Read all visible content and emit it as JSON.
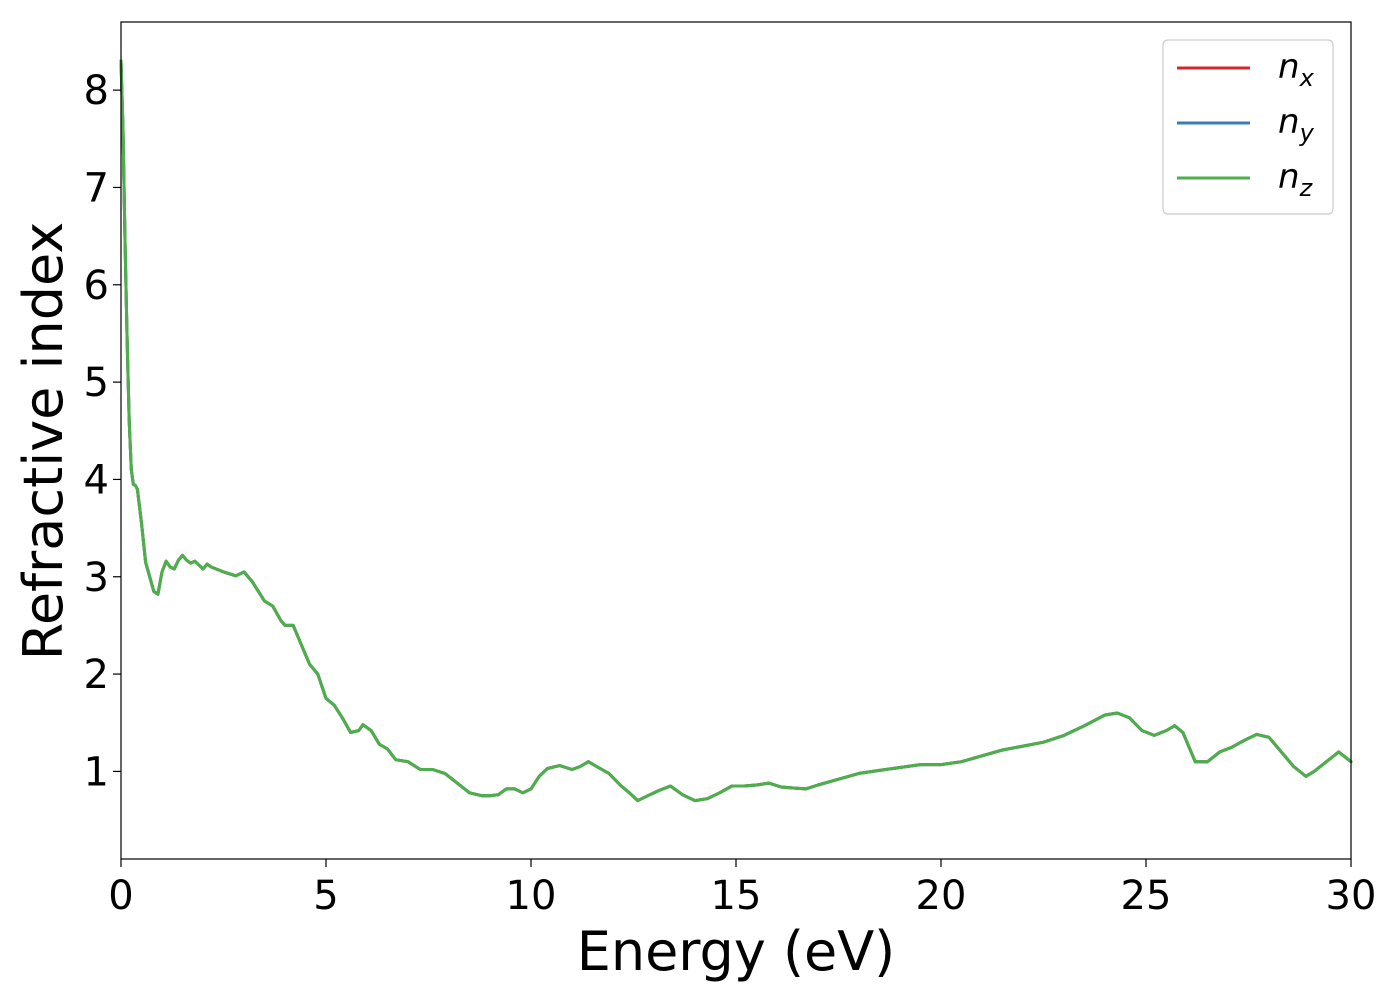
{
  "chart_data": {
    "type": "line",
    "title": "",
    "xlabel": "Energy (eV)",
    "ylabel": "Refractive index",
    "xlim": [
      0,
      30
    ],
    "ylim": [
      0.1,
      8.7
    ],
    "xticks": [
      0,
      5,
      10,
      15,
      20,
      25,
      30
    ],
    "xtick_labels": [
      "0",
      "5",
      "10",
      "15",
      "20",
      "25",
      "30"
    ],
    "yticks": [
      1,
      2,
      3,
      4,
      5,
      6,
      7,
      8
    ],
    "ytick_labels": [
      "1",
      "2",
      "3",
      "4",
      "5",
      "6",
      "7",
      "8"
    ],
    "grid": false,
    "legend_position": "top-right",
    "x": [
      0,
      0.05,
      0.1,
      0.15,
      0.2,
      0.25,
      0.3,
      0.35,
      0.4,
      0.5,
      0.6,
      0.7,
      0.8,
      0.9,
      1.0,
      1.1,
      1.2,
      1.3,
      1.4,
      1.5,
      1.6,
      1.7,
      1.8,
      1.9,
      2.0,
      2.1,
      2.2,
      2.5,
      2.8,
      3.0,
      3.2,
      3.5,
      3.7,
      3.9,
      4.0,
      4.2,
      4.4,
      4.6,
      4.8,
      5.0,
      5.2,
      5.4,
      5.6,
      5.8,
      5.9,
      6.1,
      6.3,
      6.5,
      6.7,
      7.0,
      7.3,
      7.6,
      7.9,
      8.2,
      8.5,
      8.8,
      9.0,
      9.2,
      9.4,
      9.6,
      9.8,
      10.0,
      10.2,
      10.4,
      10.7,
      11.0,
      11.2,
      11.4,
      11.6,
      11.9,
      12.2,
      12.4,
      12.6,
      12.8,
      13.1,
      13.4,
      13.7,
      14.0,
      14.3,
      14.6,
      14.9,
      15.2,
      15.5,
      15.8,
      16.1,
      16.4,
      16.7,
      17.0,
      17.5,
      18.0,
      18.5,
      19.0,
      19.5,
      20.0,
      20.5,
      21.0,
      21.5,
      22.0,
      22.5,
      23.0,
      23.5,
      24.0,
      24.3,
      24.6,
      24.9,
      25.2,
      25.5,
      25.7,
      25.9,
      26.2,
      26.5,
      26.8,
      27.1,
      27.4,
      27.7,
      28.0,
      28.3,
      28.6,
      28.9,
      29.1,
      29.4,
      29.7,
      30.0
    ],
    "series": [
      {
        "name": "n_x",
        "color": "#d62728",
        "y": [
          8.3,
          7.6,
          6.4,
          5.4,
          4.6,
          4.1,
          3.95,
          3.94,
          3.9,
          3.55,
          3.15,
          3.0,
          2.85,
          2.82,
          3.05,
          3.16,
          3.1,
          3.08,
          3.17,
          3.22,
          3.17,
          3.14,
          3.16,
          3.12,
          3.08,
          3.13,
          3.1,
          3.05,
          3.01,
          3.05,
          2.95,
          2.75,
          2.7,
          2.55,
          2.5,
          2.5,
          2.3,
          2.1,
          2.0,
          1.75,
          1.68,
          1.55,
          1.4,
          1.42,
          1.48,
          1.42,
          1.28,
          1.23,
          1.12,
          1.1,
          1.02,
          1.02,
          0.98,
          0.88,
          0.78,
          0.75,
          0.75,
          0.76,
          0.82,
          0.82,
          0.78,
          0.82,
          0.95,
          1.03,
          1.06,
          1.02,
          1.05,
          1.1,
          1.05,
          0.98,
          0.85,
          0.78,
          0.7,
          0.74,
          0.8,
          0.85,
          0.76,
          0.7,
          0.72,
          0.78,
          0.85,
          0.85,
          0.86,
          0.88,
          0.84,
          0.83,
          0.82,
          0.86,
          0.92,
          0.98,
          1.01,
          1.04,
          1.07,
          1.07,
          1.1,
          1.16,
          1.22,
          1.26,
          1.3,
          1.37,
          1.47,
          1.58,
          1.6,
          1.55,
          1.42,
          1.37,
          1.42,
          1.47,
          1.4,
          1.1,
          1.1,
          1.2,
          1.25,
          1.32,
          1.38,
          1.35,
          1.2,
          1.05,
          0.95,
          1.0,
          1.1,
          1.2,
          1.1
        ]
      },
      {
        "name": "n_y",
        "color": "#3a7cb3",
        "y": [
          8.3,
          7.6,
          6.4,
          5.4,
          4.6,
          4.1,
          3.95,
          3.94,
          3.9,
          3.55,
          3.15,
          3.0,
          2.85,
          2.82,
          3.05,
          3.16,
          3.1,
          3.08,
          3.17,
          3.22,
          3.17,
          3.14,
          3.16,
          3.12,
          3.08,
          3.13,
          3.1,
          3.05,
          3.01,
          3.05,
          2.95,
          2.75,
          2.7,
          2.55,
          2.5,
          2.5,
          2.3,
          2.1,
          2.0,
          1.75,
          1.68,
          1.55,
          1.4,
          1.42,
          1.48,
          1.42,
          1.28,
          1.23,
          1.12,
          1.1,
          1.02,
          1.02,
          0.98,
          0.88,
          0.78,
          0.75,
          0.75,
          0.76,
          0.82,
          0.82,
          0.78,
          0.82,
          0.95,
          1.03,
          1.06,
          1.02,
          1.05,
          1.1,
          1.05,
          0.98,
          0.85,
          0.78,
          0.7,
          0.74,
          0.8,
          0.85,
          0.76,
          0.7,
          0.72,
          0.78,
          0.85,
          0.85,
          0.86,
          0.88,
          0.84,
          0.83,
          0.82,
          0.86,
          0.92,
          0.98,
          1.01,
          1.04,
          1.07,
          1.07,
          1.1,
          1.16,
          1.22,
          1.26,
          1.3,
          1.37,
          1.47,
          1.58,
          1.6,
          1.55,
          1.42,
          1.37,
          1.42,
          1.47,
          1.4,
          1.1,
          1.1,
          1.2,
          1.25,
          1.32,
          1.38,
          1.35,
          1.2,
          1.05,
          0.95,
          1.0,
          1.1,
          1.2,
          1.1
        ]
      },
      {
        "name": "n_z",
        "color": "#4daf4a",
        "y": [
          8.3,
          7.6,
          6.4,
          5.4,
          4.6,
          4.1,
          3.95,
          3.94,
          3.9,
          3.55,
          3.15,
          3.0,
          2.85,
          2.82,
          3.05,
          3.16,
          3.1,
          3.08,
          3.17,
          3.22,
          3.17,
          3.14,
          3.16,
          3.12,
          3.08,
          3.13,
          3.1,
          3.05,
          3.01,
          3.05,
          2.95,
          2.75,
          2.7,
          2.55,
          2.5,
          2.5,
          2.3,
          2.1,
          2.0,
          1.75,
          1.68,
          1.55,
          1.4,
          1.42,
          1.48,
          1.42,
          1.28,
          1.23,
          1.12,
          1.1,
          1.02,
          1.02,
          0.98,
          0.88,
          0.78,
          0.75,
          0.75,
          0.76,
          0.82,
          0.82,
          0.78,
          0.82,
          0.95,
          1.03,
          1.06,
          1.02,
          1.05,
          1.1,
          1.05,
          0.98,
          0.85,
          0.78,
          0.7,
          0.74,
          0.8,
          0.85,
          0.76,
          0.7,
          0.72,
          0.78,
          0.85,
          0.85,
          0.86,
          0.88,
          0.84,
          0.83,
          0.82,
          0.86,
          0.92,
          0.98,
          1.01,
          1.04,
          1.07,
          1.07,
          1.1,
          1.16,
          1.22,
          1.26,
          1.3,
          1.37,
          1.47,
          1.58,
          1.6,
          1.55,
          1.42,
          1.37,
          1.42,
          1.47,
          1.4,
          1.1,
          1.1,
          1.2,
          1.25,
          1.32,
          1.38,
          1.35,
          1.2,
          1.05,
          0.95,
          1.0,
          1.1,
          1.2,
          1.1
        ]
      }
    ],
    "legend": [
      {
        "main": "n",
        "sub": "x"
      },
      {
        "main": "n",
        "sub": "y"
      },
      {
        "main": "n",
        "sub": "z"
      }
    ]
  }
}
